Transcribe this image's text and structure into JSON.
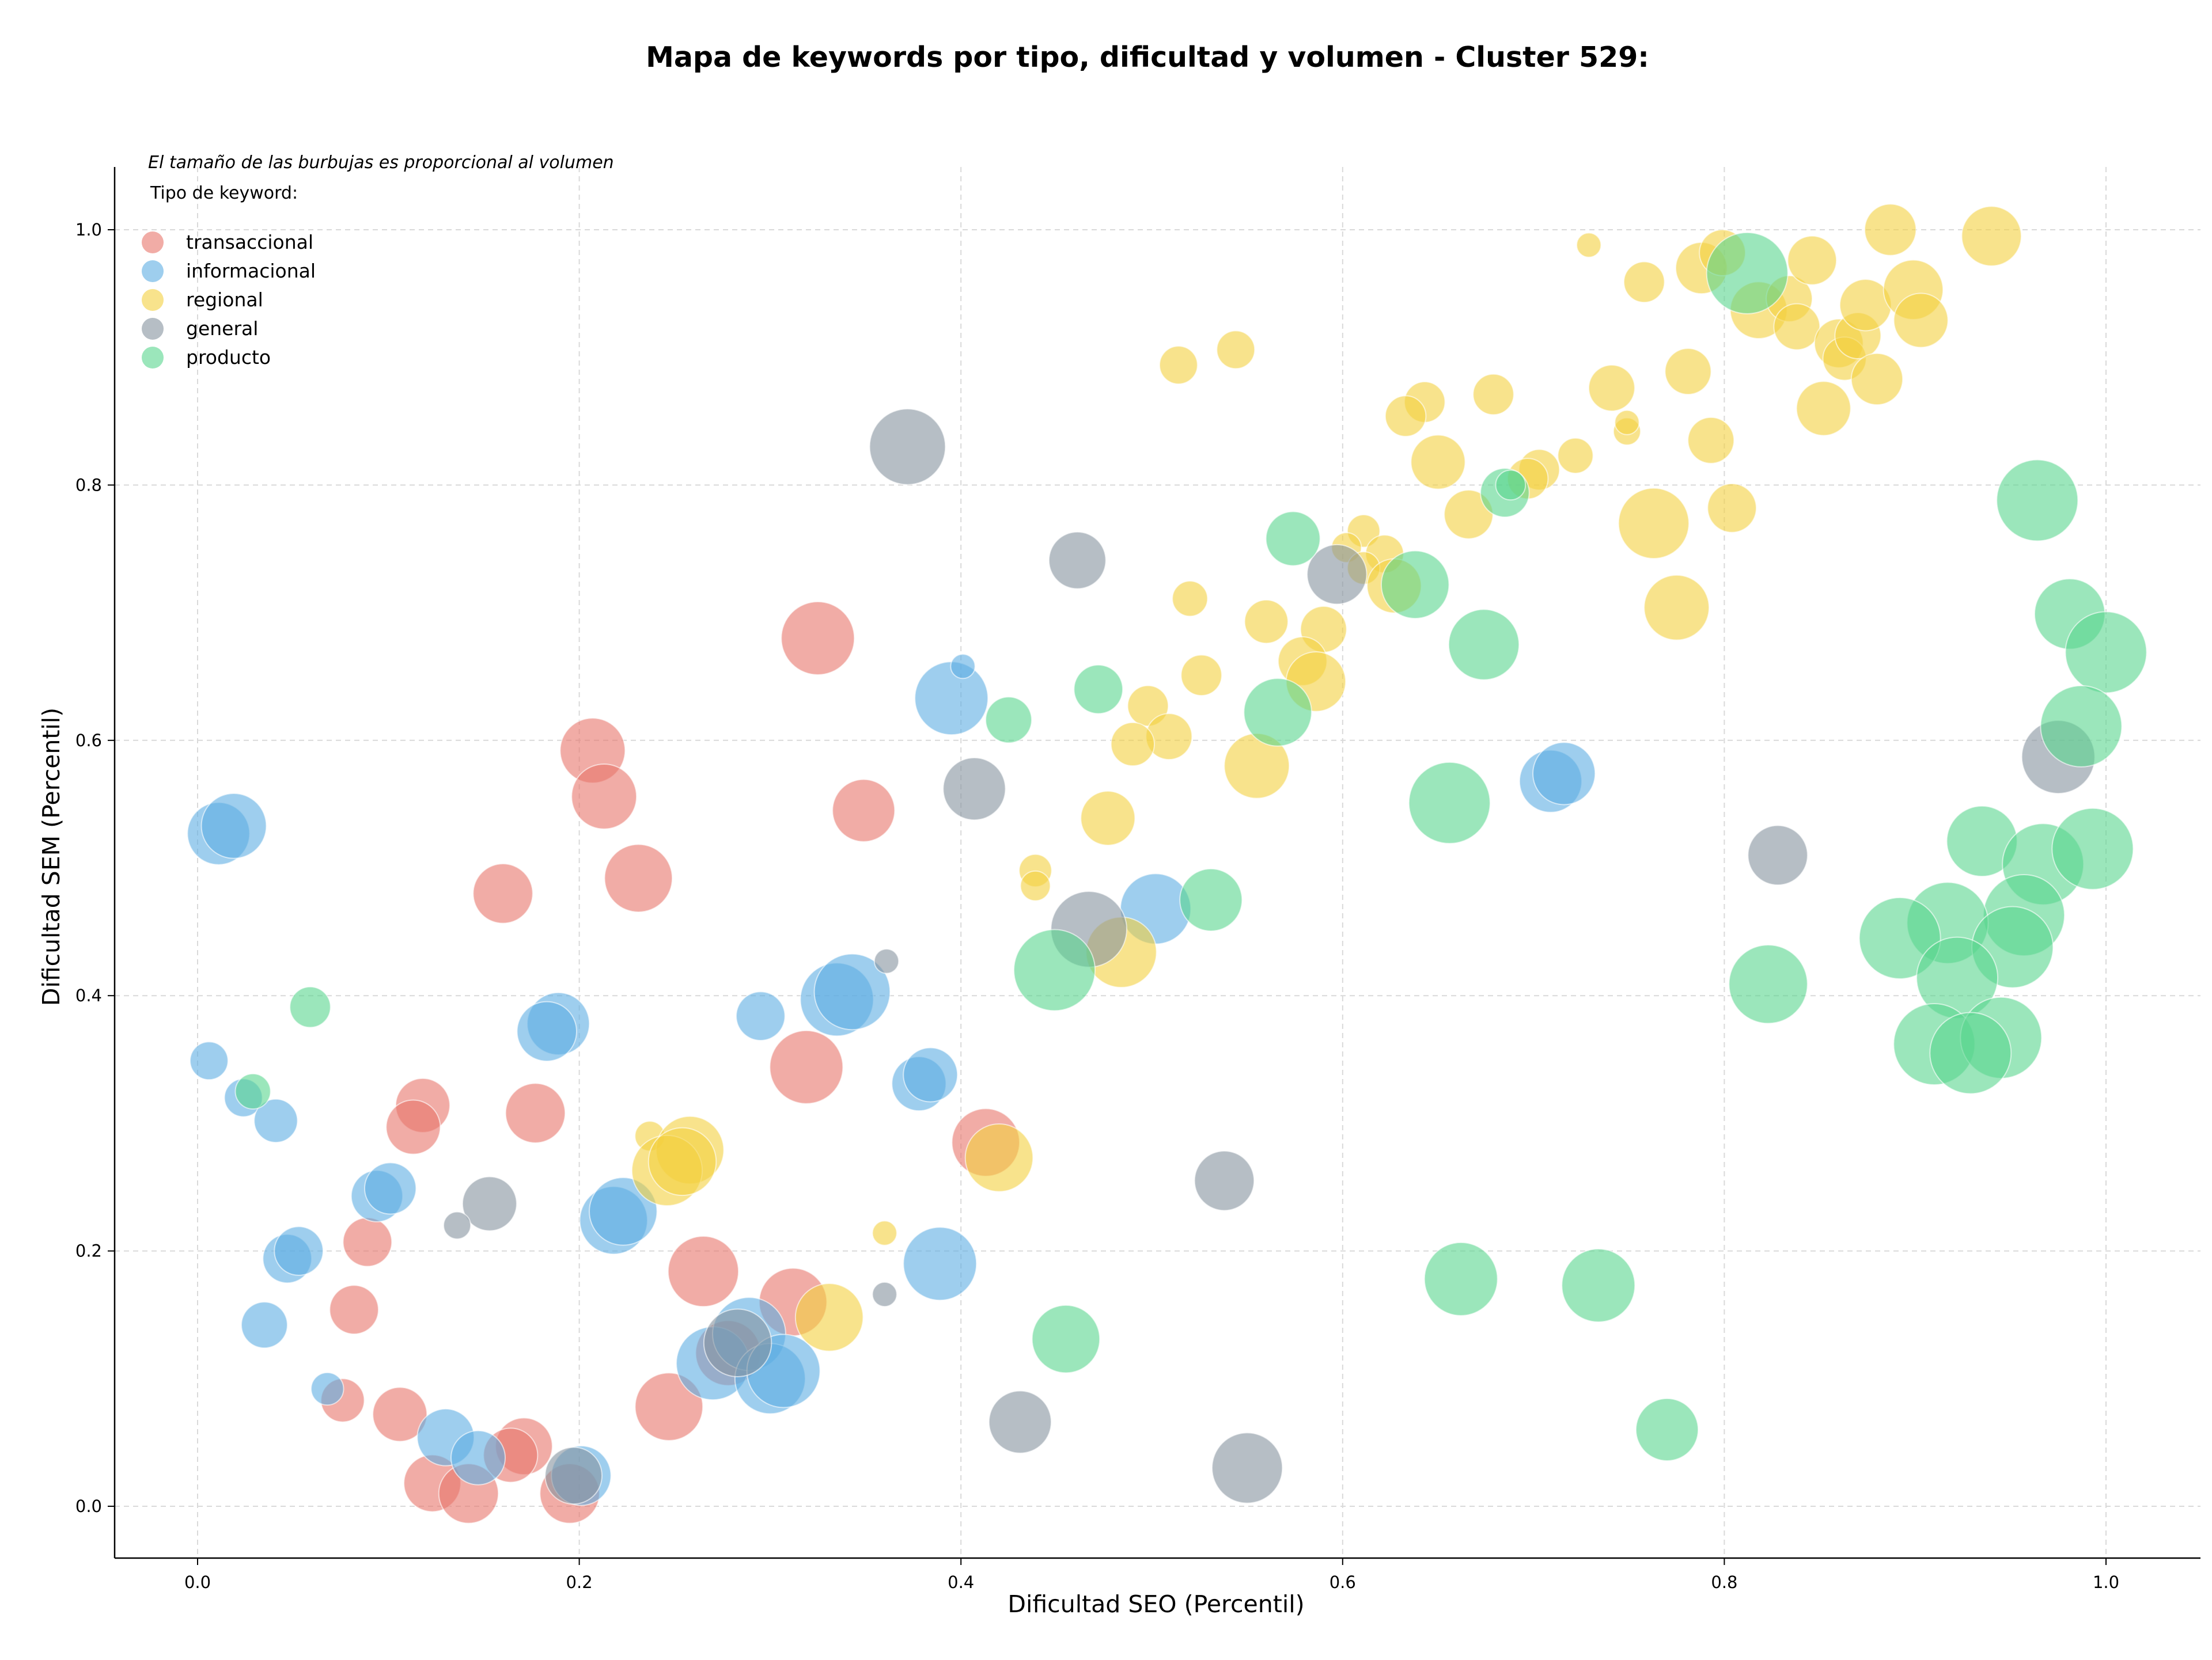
{
  "chart_data": {
    "type": "scatter",
    "title": "Mapa de keywords por tipo, dificultad y volumen - Cluster 529:",
    "xlabel": "Dificultad SEO (Percentil)",
    "ylabel": "Dificultad SEM (Percentil)",
    "xlim": [
      -0.04,
      1.04
    ],
    "ylim": [
      -0.04,
      1.05
    ],
    "xticks": [
      "0.0",
      "0.2",
      "0.4",
      "0.6",
      "0.8",
      "1.0"
    ],
    "yticks": [
      "0.0",
      "0.2",
      "0.4",
      "0.6",
      "0.8",
      "1.0"
    ],
    "grid": true,
    "annotation": "El tamaño de las burbujas es proporcional al volumen",
    "legend": {
      "title": "Tipo de keyword:",
      "placement": "top-left"
    },
    "series": [
      {
        "name": "transaccional",
        "color": "#E8746A",
        "points": [
          {
            "x": 0.325,
            "y": 0.68,
            "s": 27
          },
          {
            "x": 0.207,
            "y": 0.592,
            "s": 24
          },
          {
            "x": 0.213,
            "y": 0.556,
            "s": 24
          },
          {
            "x": 0.349,
            "y": 0.545,
            "s": 23
          },
          {
            "x": 0.231,
            "y": 0.492,
            "s": 25
          },
          {
            "x": 0.16,
            "y": 0.48,
            "s": 22
          },
          {
            "x": 0.319,
            "y": 0.344,
            "s": 27
          },
          {
            "x": 0.118,
            "y": 0.314,
            "s": 20
          },
          {
            "x": 0.113,
            "y": 0.297,
            "s": 20
          },
          {
            "x": 0.177,
            "y": 0.308,
            "s": 22
          },
          {
            "x": 0.413,
            "y": 0.285,
            "s": 25
          },
          {
            "x": 0.089,
            "y": 0.207,
            "s": 18
          },
          {
            "x": 0.265,
            "y": 0.184,
            "s": 26
          },
          {
            "x": 0.312,
            "y": 0.16,
            "s": 25
          },
          {
            "x": 0.082,
            "y": 0.154,
            "s": 18
          },
          {
            "x": 0.278,
            "y": 0.12,
            "s": 24
          },
          {
            "x": 0.247,
            "y": 0.078,
            "s": 25
          },
          {
            "x": 0.076,
            "y": 0.083,
            "s": 16
          },
          {
            "x": 0.106,
            "y": 0.072,
            "s": 20
          },
          {
            "x": 0.171,
            "y": 0.047,
            "s": 21
          },
          {
            "x": 0.164,
            "y": 0.04,
            "s": 20
          },
          {
            "x": 0.123,
            "y": 0.018,
            "s": 21
          },
          {
            "x": 0.142,
            "y": 0.01,
            "s": 22
          },
          {
            "x": 0.195,
            "y": 0.01,
            "s": 22
          }
        ]
      },
      {
        "name": "informacional",
        "color": "#5DADE2",
        "points": [
          {
            "x": 0.011,
            "y": 0.527,
            "s": 23
          },
          {
            "x": 0.019,
            "y": 0.533,
            "s": 24
          },
          {
            "x": 0.006,
            "y": 0.349,
            "s": 14
          },
          {
            "x": 0.024,
            "y": 0.32,
            "s": 14
          },
          {
            "x": 0.041,
            "y": 0.302,
            "s": 16
          },
          {
            "x": 0.189,
            "y": 0.378,
            "s": 23
          },
          {
            "x": 0.183,
            "y": 0.372,
            "s": 22
          },
          {
            "x": 0.295,
            "y": 0.384,
            "s": 18
          },
          {
            "x": 0.335,
            "y": 0.397,
            "s": 27
          },
          {
            "x": 0.343,
            "y": 0.403,
            "s": 28
          },
          {
            "x": 0.378,
            "y": 0.331,
            "s": 20
          },
          {
            "x": 0.384,
            "y": 0.338,
            "s": 20
          },
          {
            "x": 0.395,
            "y": 0.633,
            "s": 27
          },
          {
            "x": 0.401,
            "y": 0.658,
            "s": 9
          },
          {
            "x": 0.502,
            "y": 0.468,
            "s": 26
          },
          {
            "x": 0.709,
            "y": 0.568,
            "s": 23
          },
          {
            "x": 0.716,
            "y": 0.574,
            "s": 23
          },
          {
            "x": 0.094,
            "y": 0.243,
            "s": 19
          },
          {
            "x": 0.101,
            "y": 0.249,
            "s": 19
          },
          {
            "x": 0.218,
            "y": 0.224,
            "s": 25
          },
          {
            "x": 0.223,
            "y": 0.231,
            "s": 25
          },
          {
            "x": 0.047,
            "y": 0.194,
            "s": 18
          },
          {
            "x": 0.053,
            "y": 0.2,
            "s": 18
          },
          {
            "x": 0.389,
            "y": 0.19,
            "s": 27
          },
          {
            "x": 0.035,
            "y": 0.142,
            "s": 17
          },
          {
            "x": 0.068,
            "y": 0.092,
            "s": 12
          },
          {
            "x": 0.27,
            "y": 0.112,
            "s": 27
          },
          {
            "x": 0.289,
            "y": 0.135,
            "s": 27
          },
          {
            "x": 0.3,
            "y": 0.1,
            "s": 26
          },
          {
            "x": 0.307,
            "y": 0.106,
            "s": 27
          },
          {
            "x": 0.13,
            "y": 0.054,
            "s": 21
          },
          {
            "x": 0.147,
            "y": 0.038,
            "s": 20
          },
          {
            "x": 0.201,
            "y": 0.024,
            "s": 22
          }
        ]
      },
      {
        "name": "regional",
        "color": "#F4D03F",
        "points": [
          {
            "x": 0.729,
            "y": 0.988,
            "s": 9
          },
          {
            "x": 0.758,
            "y": 0.959,
            "s": 15
          },
          {
            "x": 0.788,
            "y": 0.97,
            "s": 19
          },
          {
            "x": 0.799,
            "y": 0.982,
            "s": 17
          },
          {
            "x": 0.818,
            "y": 0.937,
            "s": 21
          },
          {
            "x": 0.834,
            "y": 0.946,
            "s": 17
          },
          {
            "x": 0.846,
            "y": 0.976,
            "s": 18
          },
          {
            "x": 0.838,
            "y": 0.924,
            "s": 17
          },
          {
            "x": 0.86,
            "y": 0.911,
            "s": 18
          },
          {
            "x": 0.863,
            "y": 0.899,
            "s": 16
          },
          {
            "x": 0.87,
            "y": 0.917,
            "s": 17
          },
          {
            "x": 0.874,
            "y": 0.941,
            "s": 19
          },
          {
            "x": 0.887,
            "y": 1.0,
            "s": 19
          },
          {
            "x": 0.899,
            "y": 0.953,
            "s": 22
          },
          {
            "x": 0.903,
            "y": 0.929,
            "s": 20
          },
          {
            "x": 0.94,
            "y": 0.995,
            "s": 22
          },
          {
            "x": 0.88,
            "y": 0.883,
            "s": 19
          },
          {
            "x": 0.852,
            "y": 0.86,
            "s": 20
          },
          {
            "x": 0.781,
            "y": 0.889,
            "s": 17
          },
          {
            "x": 0.741,
            "y": 0.876,
            "s": 17
          },
          {
            "x": 0.793,
            "y": 0.835,
            "s": 17
          },
          {
            "x": 0.749,
            "y": 0.842,
            "s": 10
          },
          {
            "x": 0.749,
            "y": 0.849,
            "s": 9
          },
          {
            "x": 0.679,
            "y": 0.871,
            "s": 15
          },
          {
            "x": 0.643,
            "y": 0.865,
            "s": 15
          },
          {
            "x": 0.633,
            "y": 0.854,
            "s": 15
          },
          {
            "x": 0.65,
            "y": 0.818,
            "s": 20
          },
          {
            "x": 0.544,
            "y": 0.906,
            "s": 14
          },
          {
            "x": 0.514,
            "y": 0.894,
            "s": 14
          },
          {
            "x": 0.722,
            "y": 0.823,
            "s": 13
          },
          {
            "x": 0.703,
            "y": 0.812,
            "s": 15
          },
          {
            "x": 0.697,
            "y": 0.805,
            "s": 15
          },
          {
            "x": 0.666,
            "y": 0.777,
            "s": 18
          },
          {
            "x": 0.763,
            "y": 0.77,
            "s": 26
          },
          {
            "x": 0.804,
            "y": 0.782,
            "s": 18
          },
          {
            "x": 0.775,
            "y": 0.704,
            "s": 24
          },
          {
            "x": 0.611,
            "y": 0.764,
            "s": 12
          },
          {
            "x": 0.602,
            "y": 0.751,
            "s": 11
          },
          {
            "x": 0.622,
            "y": 0.746,
            "s": 14
          },
          {
            "x": 0.611,
            "y": 0.735,
            "s": 12
          },
          {
            "x": 0.627,
            "y": 0.721,
            "s": 20
          },
          {
            "x": 0.52,
            "y": 0.711,
            "s": 13
          },
          {
            "x": 0.56,
            "y": 0.693,
            "s": 16
          },
          {
            "x": 0.59,
            "y": 0.687,
            "s": 17
          },
          {
            "x": 0.579,
            "y": 0.662,
            "s": 18
          },
          {
            "x": 0.586,
            "y": 0.646,
            "s": 22
          },
          {
            "x": 0.526,
            "y": 0.651,
            "s": 15
          },
          {
            "x": 0.498,
            "y": 0.627,
            "s": 15
          },
          {
            "x": 0.509,
            "y": 0.603,
            "s": 17
          },
          {
            "x": 0.49,
            "y": 0.597,
            "s": 16
          },
          {
            "x": 0.555,
            "y": 0.58,
            "s": 24
          },
          {
            "x": 0.477,
            "y": 0.539,
            "s": 20
          },
          {
            "x": 0.439,
            "y": 0.498,
            "s": 12
          },
          {
            "x": 0.439,
            "y": 0.486,
            "s": 11
          },
          {
            "x": 0.484,
            "y": 0.434,
            "s": 26
          },
          {
            "x": 0.237,
            "y": 0.29,
            "s": 11
          },
          {
            "x": 0.258,
            "y": 0.279,
            "s": 25
          },
          {
            "x": 0.246,
            "y": 0.263,
            "s": 26
          },
          {
            "x": 0.254,
            "y": 0.27,
            "s": 25
          },
          {
            "x": 0.42,
            "y": 0.273,
            "s": 25
          },
          {
            "x": 0.36,
            "y": 0.214,
            "s": 9
          },
          {
            "x": 0.331,
            "y": 0.148,
            "s": 25
          }
        ]
      },
      {
        "name": "general",
        "color": "#85929E",
        "points": [
          {
            "x": 0.372,
            "y": 0.83,
            "s": 28
          },
          {
            "x": 0.461,
            "y": 0.741,
            "s": 21
          },
          {
            "x": 0.597,
            "y": 0.73,
            "s": 22
          },
          {
            "x": 0.407,
            "y": 0.562,
            "s": 23
          },
          {
            "x": 0.975,
            "y": 0.587,
            "s": 27
          },
          {
            "x": 0.828,
            "y": 0.51,
            "s": 22
          },
          {
            "x": 0.467,
            "y": 0.452,
            "s": 28
          },
          {
            "x": 0.361,
            "y": 0.427,
            "s": 9
          },
          {
            "x": 0.153,
            "y": 0.237,
            "s": 20
          },
          {
            "x": 0.136,
            "y": 0.22,
            "s": 10
          },
          {
            "x": 0.538,
            "y": 0.255,
            "s": 22
          },
          {
            "x": 0.36,
            "y": 0.166,
            "s": 9
          },
          {
            "x": 0.283,
            "y": 0.128,
            "s": 25
          },
          {
            "x": 0.431,
            "y": 0.066,
            "s": 23
          },
          {
            "x": 0.55,
            "y": 0.03,
            "s": 26
          },
          {
            "x": 0.197,
            "y": 0.024,
            "s": 21
          }
        ]
      },
      {
        "name": "producto",
        "color": "#58D68D",
        "points": [
          {
            "x": 0.812,
            "y": 0.966,
            "s": 30
          },
          {
            "x": 0.685,
            "y": 0.794,
            "s": 18
          },
          {
            "x": 0.688,
            "y": 0.8,
            "s": 11
          },
          {
            "x": 0.574,
            "y": 0.758,
            "s": 20
          },
          {
            "x": 0.638,
            "y": 0.722,
            "s": 25
          },
          {
            "x": 0.674,
            "y": 0.675,
            "s": 26
          },
          {
            "x": 0.472,
            "y": 0.64,
            "s": 18
          },
          {
            "x": 0.425,
            "y": 0.616,
            "s": 17
          },
          {
            "x": 0.566,
            "y": 0.622,
            "s": 25
          },
          {
            "x": 0.656,
            "y": 0.551,
            "s": 30
          },
          {
            "x": 0.531,
            "y": 0.475,
            "s": 23
          },
          {
            "x": 0.449,
            "y": 0.42,
            "s": 30
          },
          {
            "x": 0.964,
            "y": 0.788,
            "s": 30
          },
          {
            "x": 0.981,
            "y": 0.699,
            "s": 26
          },
          {
            "x": 1.0,
            "y": 0.669,
            "s": 30
          },
          {
            "x": 0.987,
            "y": 0.611,
            "s": 30
          },
          {
            "x": 0.935,
            "y": 0.521,
            "s": 26
          },
          {
            "x": 0.967,
            "y": 0.503,
            "s": 30
          },
          {
            "x": 0.993,
            "y": 0.515,
            "s": 30
          },
          {
            "x": 0.957,
            "y": 0.463,
            "s": 30
          },
          {
            "x": 0.917,
            "y": 0.457,
            "s": 30
          },
          {
            "x": 0.892,
            "y": 0.445,
            "s": 30
          },
          {
            "x": 0.951,
            "y": 0.438,
            "s": 30
          },
          {
            "x": 0.922,
            "y": 0.414,
            "s": 30
          },
          {
            "x": 0.823,
            "y": 0.409,
            "s": 29
          },
          {
            "x": 0.91,
            "y": 0.362,
            "s": 30
          },
          {
            "x": 0.945,
            "y": 0.367,
            "s": 30
          },
          {
            "x": 0.929,
            "y": 0.355,
            "s": 30
          },
          {
            "x": 0.059,
            "y": 0.391,
            "s": 15
          },
          {
            "x": 0.029,
            "y": 0.325,
            "s": 13
          },
          {
            "x": 0.662,
            "y": 0.178,
            "s": 27
          },
          {
            "x": 0.734,
            "y": 0.173,
            "s": 27
          },
          {
            "x": 0.455,
            "y": 0.131,
            "s": 25
          },
          {
            "x": 0.77,
            "y": 0.06,
            "s": 23
          }
        ]
      }
    ]
  }
}
